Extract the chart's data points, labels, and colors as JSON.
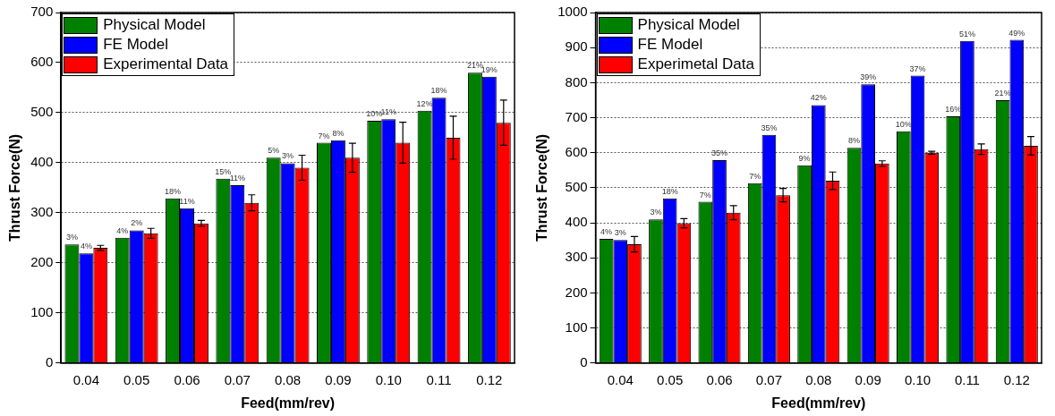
{
  "chart_data": [
    {
      "type": "bar",
      "xlabel": "Feed(mm/rev)",
      "ylabel": "Thrust Force(N)",
      "categories": [
        "0.04",
        "0.05",
        "0.06",
        "0.07",
        "0.08",
        "0.09",
        "0.10",
        "0.11",
        "0.12"
      ],
      "series": [
        {
          "name": "Physical Model",
          "color": "#008000",
          "values": [
            237,
            250,
            329,
            368,
            410,
            440,
            484,
            504,
            580
          ]
        },
        {
          "name": "FE Model",
          "color": "#0000ff",
          "values": [
            219,
            265,
            309,
            355,
            399,
            445,
            487,
            530,
            572
          ]
        },
        {
          "name": "Experimental Data",
          "color": "#ff0000",
          "values": [
            230,
            259,
            279,
            320,
            390,
            410,
            440,
            450,
            480
          ],
          "errors": [
            5,
            10,
            6,
            16,
            25,
            29,
            41,
            43,
            45
          ]
        }
      ],
      "annotations": [
        "3%",
        "4%",
        "4%",
        "2%",
        "18%",
        "11%",
        "15%",
        "11%",
        "5%",
        "3%",
        "7%",
        "8%",
        "10%",
        "11%",
        "12%",
        "18%",
        "21%",
        "19%"
      ],
      "ylim": [
        0,
        700
      ],
      "yticks": [
        0,
        100,
        200,
        300,
        400,
        500,
        600,
        700
      ],
      "grid": "y",
      "legend": "top left"
    },
    {
      "type": "bar",
      "xlabel": "Feed(mm/rev)",
      "ylabel": "Thrust Force(N)",
      "categories": [
        "0.04",
        "0.05",
        "0.06",
        "0.07",
        "0.08",
        "0.09",
        "0.10",
        "0.11",
        "0.12"
      ],
      "series": [
        {
          "name": "Physical Model",
          "color": "#008000",
          "values": [
            354,
            410,
            460,
            513,
            564,
            614,
            661,
            704,
            750
          ]
        },
        {
          "name": "FE Model",
          "color": "#0000ff",
          "values": [
            351,
            470,
            579,
            651,
            736,
            795,
            820,
            919,
            922
          ]
        },
        {
          "name": "Experimetal Data",
          "color": "#ff0000",
          "values": [
            339,
            399,
            429,
            479,
            520,
            569,
            600,
            610,
            620
          ],
          "errors": [
            22,
            13,
            20,
            19,
            25,
            8,
            4,
            15,
            26
          ]
        }
      ],
      "annotations": [
        "4%",
        "3%",
        "3%",
        "18%",
        "7%",
        "35%",
        "7%",
        "35%",
        "9%",
        "42%",
        "8%",
        "39%",
        "10%",
        "37%",
        "16%",
        "51%",
        "21%",
        "49%"
      ],
      "ylim": [
        0,
        1000
      ],
      "yticks": [
        0,
        100,
        200,
        300,
        400,
        500,
        600,
        700,
        800,
        900,
        1000
      ],
      "grid": "y",
      "legend": "top left"
    }
  ]
}
